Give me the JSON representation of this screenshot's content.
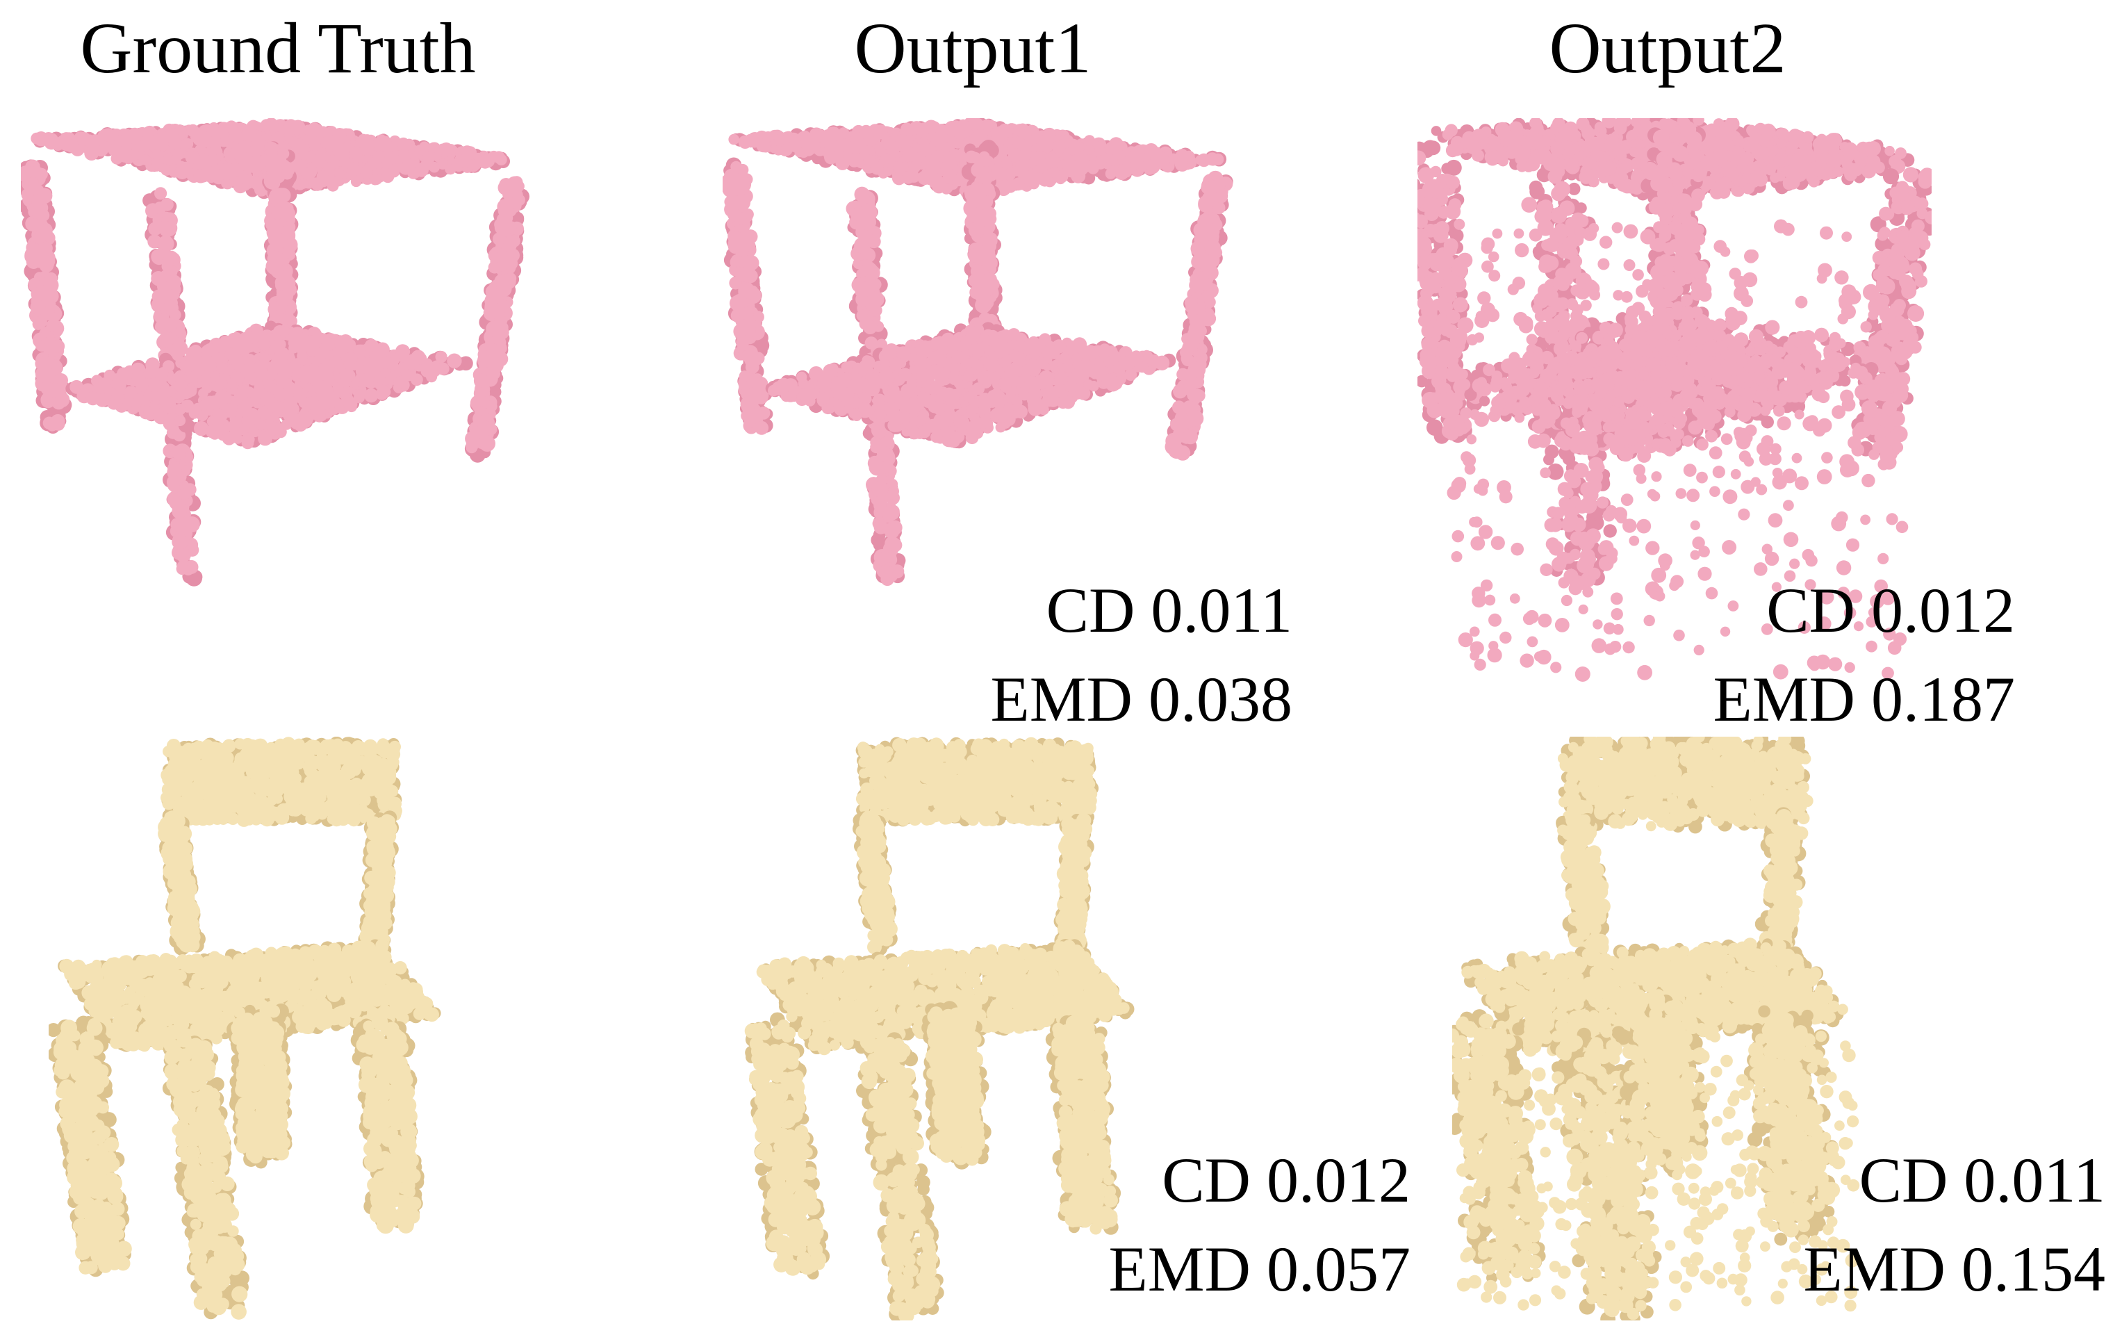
{
  "columns": [
    "Ground Truth",
    "Output1",
    "Output2"
  ],
  "colors": {
    "table_points": "#f2a9bf",
    "table_shade": "#e48fa8",
    "chair_points": "#f4e2b4",
    "chair_shade": "#dcc38e"
  },
  "rows": [
    {
      "object": "table",
      "outputs": [
        {
          "cd_label": "CD 0.011",
          "emd_label": "EMD 0.038"
        },
        {
          "cd_label": "CD 0.012",
          "emd_label": "EMD 0.187"
        }
      ]
    },
    {
      "object": "chair",
      "outputs": [
        {
          "cd_label": "CD 0.012",
          "emd_label": "EMD 0.057"
        },
        {
          "cd_label": "CD 0.011",
          "emd_label": "EMD 0.154"
        }
      ]
    }
  ]
}
